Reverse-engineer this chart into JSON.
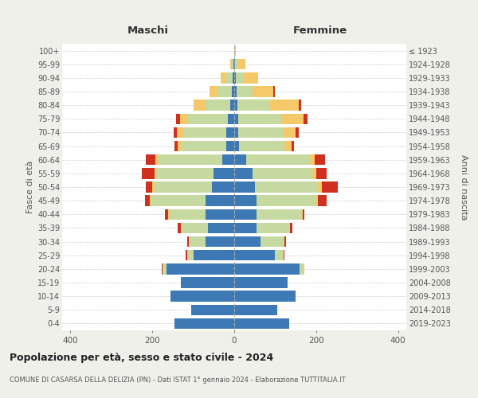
{
  "age_groups": [
    "0-4",
    "5-9",
    "10-14",
    "15-19",
    "20-24",
    "25-29",
    "30-34",
    "35-39",
    "40-44",
    "45-49",
    "50-54",
    "55-59",
    "60-64",
    "65-69",
    "70-74",
    "75-79",
    "80-84",
    "85-89",
    "90-94",
    "95-99",
    "100+"
  ],
  "birth_years": [
    "2019-2023",
    "2014-2018",
    "2009-2013",
    "2004-2008",
    "1999-2003",
    "1994-1998",
    "1989-1993",
    "1984-1988",
    "1979-1983",
    "1974-1978",
    "1969-1973",
    "1964-1968",
    "1959-1963",
    "1954-1958",
    "1949-1953",
    "1944-1948",
    "1939-1943",
    "1934-1938",
    "1929-1933",
    "1924-1928",
    "≤ 1923"
  ],
  "colors": {
    "celibi": "#3d7ab5",
    "coniugati": "#c5d9a0",
    "vedovi": "#f5c96a",
    "divorziati": "#d03020"
  },
  "maschi": {
    "celibi": [
      145,
      105,
      155,
      130,
      165,
      100,
      70,
      65,
      70,
      70,
      55,
      50,
      30,
      20,
      20,
      15,
      10,
      5,
      3,
      2,
      0
    ],
    "coniugati": [
      0,
      0,
      0,
      0,
      10,
      15,
      40,
      65,
      90,
      135,
      140,
      140,
      155,
      110,
      105,
      100,
      60,
      35,
      18,
      3,
      0
    ],
    "vedovi": [
      0,
      0,
      0,
      0,
      0,
      0,
      0,
      0,
      2,
      2,
      5,
      5,
      8,
      8,
      15,
      18,
      30,
      20,
      12,
      5,
      0
    ],
    "divorziati": [
      0,
      0,
      0,
      0,
      2,
      3,
      5,
      8,
      8,
      10,
      15,
      30,
      22,
      8,
      8,
      8,
      0,
      0,
      0,
      0,
      0
    ]
  },
  "femmine": {
    "celibi": [
      135,
      105,
      150,
      130,
      160,
      100,
      65,
      55,
      55,
      55,
      50,
      45,
      30,
      12,
      10,
      10,
      8,
      5,
      3,
      2,
      0
    ],
    "coniugati": [
      0,
      0,
      0,
      0,
      10,
      20,
      55,
      80,
      110,
      145,
      155,
      145,
      155,
      110,
      110,
      105,
      80,
      40,
      20,
      5,
      0
    ],
    "vedovi": [
      0,
      0,
      0,
      0,
      2,
      0,
      2,
      2,
      2,
      5,
      8,
      10,
      12,
      18,
      30,
      55,
      70,
      50,
      35,
      20,
      3
    ],
    "divorziati": [
      0,
      0,
      0,
      0,
      0,
      3,
      5,
      5,
      5,
      20,
      40,
      25,
      25,
      5,
      8,
      8,
      5,
      5,
      0,
      0,
      0
    ]
  },
  "xlim": 420,
  "xlabel_maschi": "Maschi",
  "xlabel_femmine": "Femmine",
  "ylabel_left": "Fasce di età",
  "ylabel_right": "Anni di nascita",
  "title": "Popolazione per età, sesso e stato civile - 2024",
  "subtitle": "COMUNE DI CASARSA DELLA DELIZIA (PN) - Dati ISTAT 1° gennaio 2024 - Elaborazione TUTTITALIA.IT",
  "bg_color": "#f0f0eb",
  "plot_bg_color": "#ffffff"
}
